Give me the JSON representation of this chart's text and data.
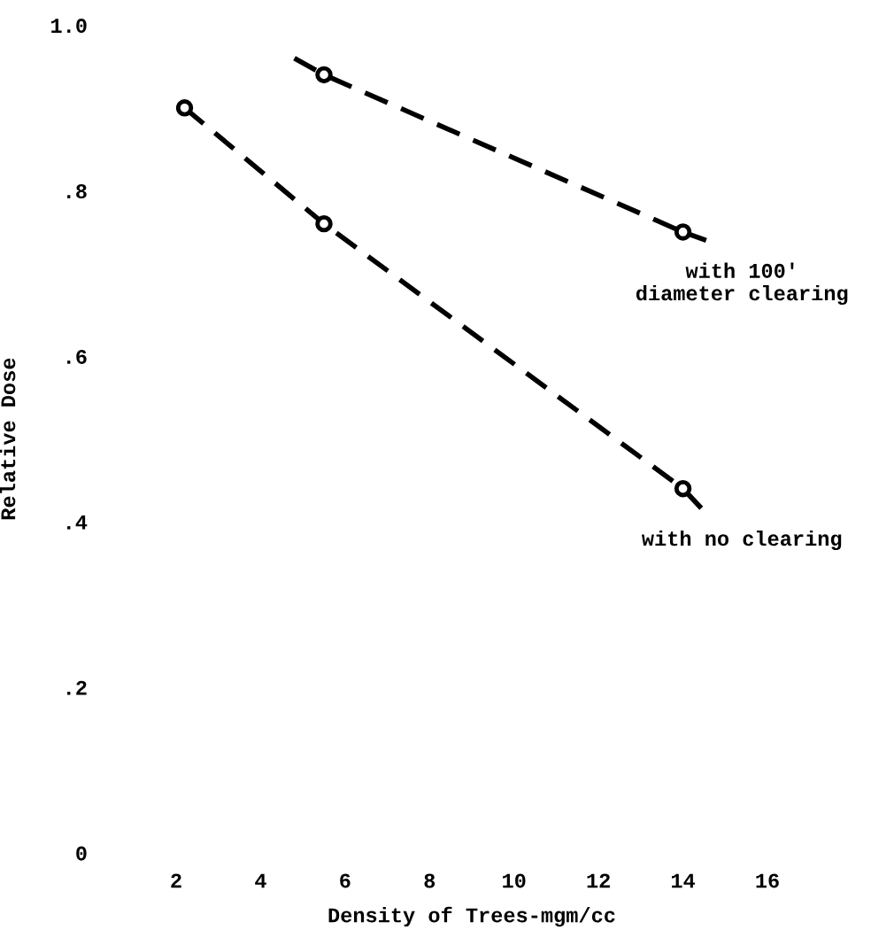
{
  "chart_data": {
    "type": "line",
    "xlabel": "Density of Trees-mgm/cc",
    "ylabel": "Relative Dose",
    "xlim": [
      2,
      16
    ],
    "ylim": [
      0,
      1.0
    ],
    "xticks": [
      2,
      4,
      6,
      8,
      10,
      12,
      14,
      16
    ],
    "yticks": [
      {
        "value": 0,
        "label": "0"
      },
      {
        "value": 0.2,
        "label": ".2"
      },
      {
        "value": 0.4,
        "label": ".4"
      },
      {
        "value": 0.6,
        "label": ".6"
      },
      {
        "value": 0.8,
        "label": ".8"
      },
      {
        "value": 1.0,
        "label": "1.0"
      }
    ],
    "grid": false,
    "legend": false,
    "series": [
      {
        "color": "#000000",
        "line_style": "dashed",
        "marker": "none",
        "x": [
          4.8,
          5.5,
          14.0,
          14.55
        ],
        "values": [
          0.96,
          0.94,
          0.75,
          0.74
        ]
      },
      {
        "color": "#000000",
        "line_style": "dashed",
        "marker": "none",
        "x": [
          2.2,
          5.5,
          14.0,
          14.55
        ],
        "values": [
          0.9,
          0.76,
          0.44,
          0.41
        ]
      },
      {
        "type": "scatter",
        "color": "#000000",
        "marker": "circle",
        "x": [
          5.5,
          14.0
        ],
        "values": [
          0.94,
          0.75
        ]
      },
      {
        "type": "scatter",
        "color": "#000000",
        "marker": "circle",
        "x": [
          2.2,
          5.5,
          14.0
        ],
        "values": [
          0.9,
          0.76,
          0.44
        ]
      }
    ],
    "annotations": [
      {
        "text": "with 100'\ndiameter clearing",
        "x": 14.0,
        "y": 0.75
      },
      {
        "text": "with no clearing",
        "x": 14.0,
        "y": 0.44
      }
    ]
  }
}
